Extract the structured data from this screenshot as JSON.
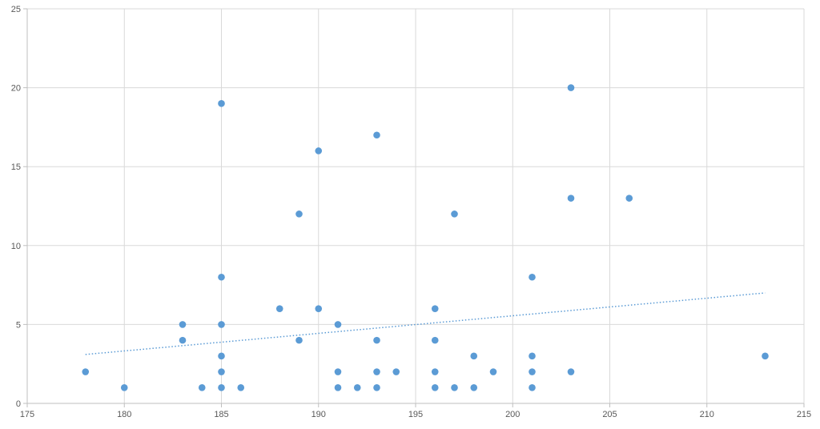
{
  "chart_data": {
    "type": "scatter",
    "title": "",
    "xlabel": "",
    "ylabel": "",
    "xlim": [
      175,
      215
    ],
    "ylim": [
      0,
      25
    ],
    "xticks": [
      175,
      180,
      185,
      190,
      195,
      200,
      205,
      210,
      215
    ],
    "yticks": [
      0,
      5,
      10,
      15,
      20,
      25
    ],
    "grid": true,
    "legend": "none",
    "point_color": "#5b9bd5",
    "trendline": {
      "type": "linear",
      "style": "dotted",
      "color": "#5b9bd5",
      "x": [
        178,
        213
      ],
      "y": [
        3.1,
        7.0
      ]
    },
    "series": [
      {
        "points": [
          {
            "x": 178,
            "y": 2
          },
          {
            "x": 180,
            "y": 1
          },
          {
            "x": 183,
            "y": 5
          },
          {
            "x": 183,
            "y": 4
          },
          {
            "x": 184,
            "y": 1
          },
          {
            "x": 185,
            "y": 19
          },
          {
            "x": 185,
            "y": 8
          },
          {
            "x": 185,
            "y": 5
          },
          {
            "x": 185,
            "y": 3
          },
          {
            "x": 185,
            "y": 2
          },
          {
            "x": 185,
            "y": 1
          },
          {
            "x": 186,
            "y": 1
          },
          {
            "x": 188,
            "y": 6
          },
          {
            "x": 189,
            "y": 12
          },
          {
            "x": 189,
            "y": 4
          },
          {
            "x": 190,
            "y": 16
          },
          {
            "x": 190,
            "y": 6
          },
          {
            "x": 191,
            "y": 5
          },
          {
            "x": 191,
            "y": 2
          },
          {
            "x": 191,
            "y": 1
          },
          {
            "x": 192,
            "y": 1
          },
          {
            "x": 193,
            "y": 17
          },
          {
            "x": 193,
            "y": 4
          },
          {
            "x": 193,
            "y": 2
          },
          {
            "x": 193,
            "y": 1
          },
          {
            "x": 194,
            "y": 2
          },
          {
            "x": 196,
            "y": 6
          },
          {
            "x": 196,
            "y": 4
          },
          {
            "x": 196,
            "y": 2
          },
          {
            "x": 196,
            "y": 1
          },
          {
            "x": 197,
            "y": 12
          },
          {
            "x": 197,
            "y": 1
          },
          {
            "x": 198,
            "y": 3
          },
          {
            "x": 198,
            "y": 1
          },
          {
            "x": 199,
            "y": 2
          },
          {
            "x": 201,
            "y": 8
          },
          {
            "x": 201,
            "y": 3
          },
          {
            "x": 201,
            "y": 2
          },
          {
            "x": 201,
            "y": 1
          },
          {
            "x": 203,
            "y": 20
          },
          {
            "x": 203,
            "y": 13
          },
          {
            "x": 203,
            "y": 2
          },
          {
            "x": 206,
            "y": 13
          },
          {
            "x": 213,
            "y": 3
          }
        ]
      }
    ]
  }
}
